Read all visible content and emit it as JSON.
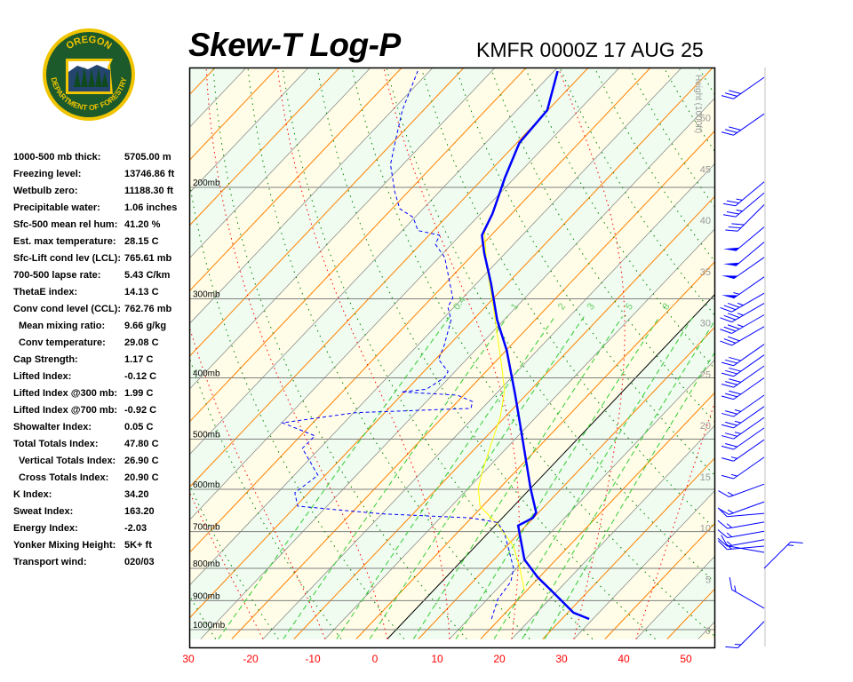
{
  "header": {
    "title": "Skew-T Log-P",
    "station_time": "KMFR 0000Z 17 AUG 25",
    "logo_text_top": "OREGON",
    "logo_text_bottom": "DEPARTMENT OF FORESTRY"
  },
  "stats": [
    {
      "label": "1000-500 mb thick:",
      "value": "5705.00 m"
    },
    {
      "label": "Freezing level:",
      "value": "13746.86 ft"
    },
    {
      "label": "Wetbulb zero:",
      "value": "11188.30 ft"
    },
    {
      "label": "Precipitable water:",
      "value": "1.06 inches"
    },
    {
      "label": "Sfc-500 mean rel hum:",
      "value": "41.20 %"
    },
    {
      "label": "Est. max temperature:",
      "value": "28.15 C"
    },
    {
      "label": "Sfc-Lift cond lev (LCL):",
      "value": "765.61 mb"
    },
    {
      "label": "700-500 lapse rate:",
      "value": "5.43 C/km"
    },
    {
      "label": "ThetaE index:",
      "value": "14.13 C"
    },
    {
      "label": "Conv cond level (CCL):",
      "value": "762.76 mb"
    },
    {
      "label": "Mean mixing ratio:",
      "value": "9.66 g/kg",
      "indent": true
    },
    {
      "label": "Conv temperature:",
      "value": "29.08 C",
      "indent": true
    },
    {
      "label": "Cap Strength:",
      "value": "1.17 C"
    },
    {
      "label": "Lifted Index:",
      "value": "-0.12 C"
    },
    {
      "label": "Lifted Index @300 mb:",
      "value": "1.99 C"
    },
    {
      "label": "Lifted Index @700 mb:",
      "value": "-0.92 C"
    },
    {
      "label": "Showalter Index:",
      "value": "0.05 C"
    },
    {
      "label": "Total Totals Index:",
      "value": "47.80 C"
    },
    {
      "label": "Vertical Totals Index:",
      "value": "26.90 C",
      "indent": true
    },
    {
      "label": "Cross Totals Index:",
      "value": "20.90 C",
      "indent": true
    },
    {
      "label": "K Index:",
      "value": "34.20"
    },
    {
      "label": "Sweat Index:",
      "value": "163.20"
    },
    {
      "label": "Energy Index:",
      "value": "-2.03"
    },
    {
      "label": "Yonker Mixing Height:",
      "value": "5K+ ft"
    },
    {
      "label": "Transport wind:",
      "value": "020/03"
    }
  ],
  "chart_data": {
    "type": "skew-t log-p",
    "x_tick_labels": [
      "30",
      "-20",
      "-10",
      "0",
      "10",
      "20",
      "30",
      "40",
      "50"
    ],
    "x_tick_values": [
      -30,
      -20,
      -10,
      0,
      10,
      20,
      30,
      40,
      50
    ],
    "xlim_c": [
      -30,
      54
    ],
    "pressure_labels": [
      "200mb",
      "300mb",
      "400mb",
      "500mb",
      "600mb",
      "700mb",
      "800mb",
      "900mb",
      "1000mb"
    ],
    "pressure_values": [
      200,
      300,
      400,
      500,
      600,
      700,
      800,
      900,
      1000
    ],
    "pressure_range_mb": [
      1030,
      129
    ],
    "height_axis_label": "Height (1000ft)",
    "height_ticks": [
      0,
      5,
      10,
      15,
      20,
      25,
      30,
      35,
      40,
      45,
      50
    ],
    "mixing_ratio_labels": [
      "0.4",
      "1",
      "2",
      "3",
      "5",
      "8"
    ],
    "mixing_ratio_lines": [
      0.4,
      1,
      2,
      3,
      5,
      8,
      12,
      16,
      20
    ],
    "colors": {
      "temperature": "#0000ff",
      "dewpoint": "#0000ff",
      "parcel": "#ffff00",
      "isotherm": "#808080",
      "zero_isotherm": "#000000",
      "orange_lines": "#ff8000",
      "dry_adiabat": "#008000",
      "moist_adiabat": "#ff0000",
      "mixing_ratio": "#33cc33",
      "axis_labels": "#ff0000",
      "height_labels": "#999999",
      "band_green": "#effcef",
      "band_yellow": "#fffde8",
      "wind_barb": "#0000ff"
    },
    "temperature": [
      [
        962,
        29.4
      ],
      [
        940,
        25.9
      ],
      [
        867,
        18.9
      ],
      [
        826,
        14.7
      ],
      [
        775,
        9.9
      ],
      [
        685,
        3.7
      ],
      [
        666,
        4.9
      ],
      [
        653,
        4.6
      ],
      [
        598,
        0.0
      ],
      [
        501,
        -8.7
      ],
      [
        426,
        -16.7
      ],
      [
        362,
        -24.9
      ],
      [
        324,
        -31.1
      ],
      [
        284,
        -37.6
      ],
      [
        254,
        -43.4
      ],
      [
        238,
        -46.5
      ],
      [
        220,
        -48.1
      ],
      [
        193,
        -51.6
      ],
      [
        170,
        -54.6
      ],
      [
        151,
        -55.1
      ],
      [
        131,
        -59.4
      ]
    ],
    "dewpoint": [
      [
        962,
        13.7
      ],
      [
        896,
        11.7
      ],
      [
        840,
        11.1
      ],
      [
        800,
        9.5
      ],
      [
        703,
        2.6
      ],
      [
        677,
        -0.1
      ],
      [
        666,
        -5.1
      ],
      [
        656,
        -20.1
      ],
      [
        638,
        -34.7
      ],
      [
        608,
        -37.2
      ],
      [
        570,
        -36.2
      ],
      [
        517,
        -42.8
      ],
      [
        494,
        -42.7
      ],
      [
        471,
        -49.9
      ],
      [
        454,
        -39.7
      ],
      [
        447,
        -21.8
      ],
      [
        436,
        -22.6
      ],
      [
        426,
        -26.0
      ],
      [
        421,
        -35.5
      ],
      [
        417,
        -31.9
      ],
      [
        400,
        -30.8
      ],
      [
        391,
        -31.1
      ],
      [
        374,
        -34.5
      ],
      [
        357,
        -35.6
      ],
      [
        324,
        -38.5
      ],
      [
        309,
        -41.0
      ],
      [
        299,
        -41.6
      ],
      [
        258,
        -49.1
      ],
      [
        246,
        -52.6
      ],
      [
        238,
        -53.3
      ],
      [
        234,
        -57.5
      ],
      [
        223,
        -60.3
      ],
      [
        216,
        -63.8
      ],
      [
        203,
        -67.2
      ],
      [
        184,
        -72.0
      ],
      [
        170,
        -74.6
      ],
      [
        151,
        -78.4
      ],
      [
        131,
        -81.9
      ]
    ],
    "parcel": [
      [
        867,
        14.6
      ],
      [
        800,
        10.5
      ],
      [
        738,
        6.1
      ],
      [
        681,
        0.1
      ],
      [
        638,
        -5.4
      ],
      [
        598,
        -8.4
      ],
      [
        561,
        -10.4
      ],
      [
        509,
        -13.1
      ],
      [
        462,
        -15.7
      ],
      [
        419,
        -19.1
      ],
      [
        381,
        -23.6
      ],
      [
        345,
        -28.4
      ],
      [
        318,
        -32.3
      ],
      [
        267,
        -40.9
      ],
      [
        234,
        -46.8
      ]
    ],
    "wind_barbs": [
      {
        "p": 134,
        "dir": 235,
        "kt": 30
      },
      {
        "p": 153,
        "dir": 235,
        "kt": 30
      },
      {
        "p": 196,
        "dir": 230,
        "kt": 25
      },
      {
        "p": 204,
        "dir": 230,
        "kt": 25
      },
      {
        "p": 213,
        "dir": 225,
        "kt": 30
      },
      {
        "p": 231,
        "dir": 230,
        "kt": 50
      },
      {
        "p": 244,
        "dir": 230,
        "kt": 50
      },
      {
        "p": 258,
        "dir": 235,
        "kt": 50
      },
      {
        "p": 277,
        "dir": 235,
        "kt": 55
      },
      {
        "p": 294,
        "dir": 240,
        "kt": 35
      },
      {
        "p": 305,
        "dir": 240,
        "kt": 35
      },
      {
        "p": 318,
        "dir": 240,
        "kt": 35
      },
      {
        "p": 332,
        "dir": 240,
        "kt": 30
      },
      {
        "p": 354,
        "dir": 235,
        "kt": 30
      },
      {
        "p": 368,
        "dir": 235,
        "kt": 30
      },
      {
        "p": 383,
        "dir": 235,
        "kt": 30
      },
      {
        "p": 400,
        "dir": 235,
        "kt": 30
      },
      {
        "p": 426,
        "dir": 235,
        "kt": 25
      },
      {
        "p": 444,
        "dir": 235,
        "kt": 25
      },
      {
        "p": 462,
        "dir": 235,
        "kt": 25
      },
      {
        "p": 480,
        "dir": 235,
        "kt": 20
      },
      {
        "p": 501,
        "dir": 235,
        "kt": 15
      },
      {
        "p": 534,
        "dir": 235,
        "kt": 15
      },
      {
        "p": 589,
        "dir": 250,
        "kt": 15
      },
      {
        "p": 628,
        "dir": 250,
        "kt": 15
      },
      {
        "p": 655,
        "dir": 265,
        "kt": 10
      },
      {
        "p": 676,
        "dir": 260,
        "kt": 15
      },
      {
        "p": 699,
        "dir": 260,
        "kt": 15
      },
      {
        "p": 721,
        "dir": 260,
        "kt": 15
      },
      {
        "p": 738,
        "dir": 265,
        "kt": 15
      },
      {
        "p": 755,
        "dir": 280,
        "kt": 10
      },
      {
        "p": 800,
        "dir": 45,
        "kt": 15
      },
      {
        "p": 925,
        "dir": 300,
        "kt": 15
      },
      {
        "p": 971,
        "dir": 225,
        "kt": 15
      }
    ]
  }
}
